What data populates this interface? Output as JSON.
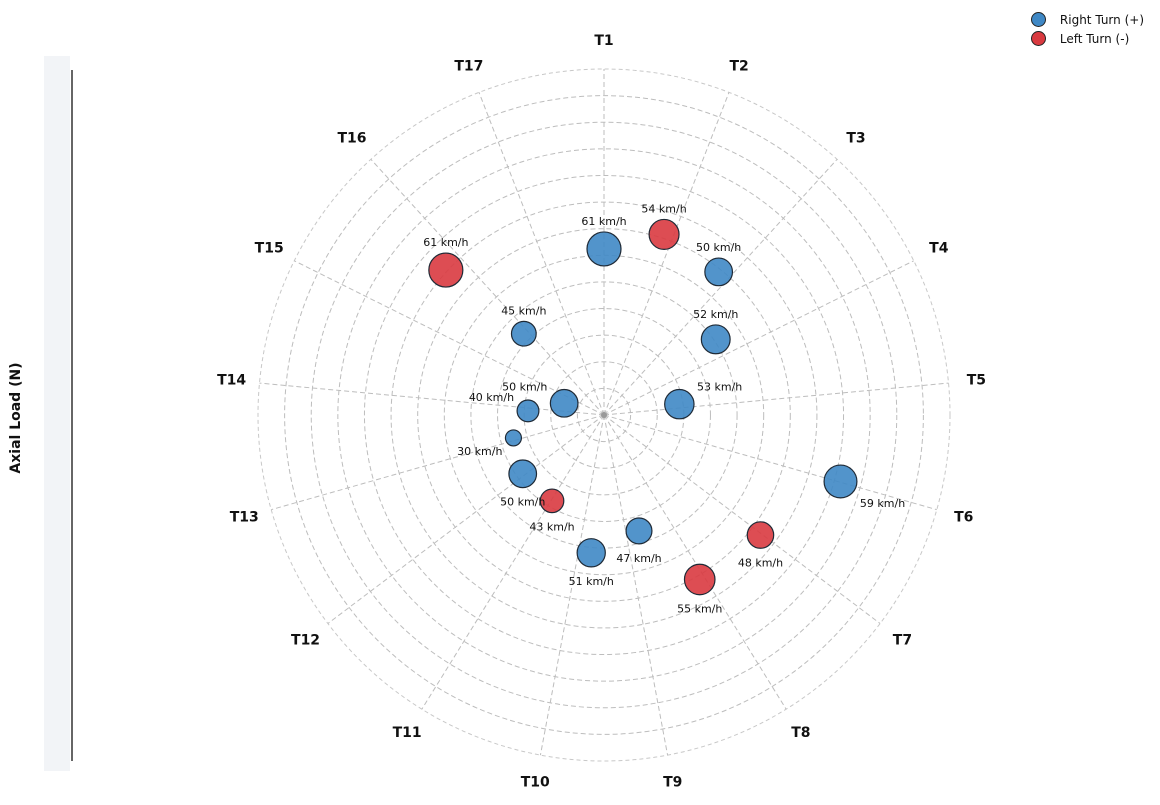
{
  "chart_data": {
    "type": "scatter",
    "subtype": "polar-bubble",
    "title": "",
    "ylabel": "Axial Load (N)",
    "grid": true,
    "legend": {
      "placement": "top-right",
      "entries": [
        {
          "label": "Right Turn (+)",
          "color": "#3f88c5"
        },
        {
          "label": "Left Turn (-)",
          "color": "#d93a40"
        }
      ]
    },
    "categories": [
      "T1",
      "T2",
      "T3",
      "T4",
      "T5",
      "T6",
      "T7",
      "T8",
      "T9",
      "T10",
      "T11",
      "T12",
      "T13",
      "T14",
      "T15",
      "T16",
      "T17"
    ],
    "r_max": 100,
    "rings": 13,
    "points": [
      {
        "id": "p1",
        "type": "right",
        "angle_deg": 0,
        "r": 48,
        "speed": 61,
        "label": "61 km/h"
      },
      {
        "id": "p2",
        "type": "left",
        "angle_deg": 18.4,
        "r": 55,
        "speed": 54,
        "label": "54 km/h"
      },
      {
        "id": "p3",
        "type": "right",
        "angle_deg": 38.7,
        "r": 53,
        "speed": 50,
        "label": "50 km/h"
      },
      {
        "id": "p4",
        "type": "right",
        "angle_deg": 55.9,
        "r": 39,
        "speed": 52,
        "label": "52 km/h"
      },
      {
        "id": "p5",
        "type": "right",
        "angle_deg": 81.8,
        "r": 22,
        "speed": 53,
        "label": "53 km/h"
      },
      {
        "id": "p6",
        "type": "right",
        "angle_deg": 105.7,
        "r": 71,
        "speed": 59,
        "label": "59 km/h"
      },
      {
        "id": "p7",
        "type": "left",
        "angle_deg": 127.5,
        "r": 57,
        "speed": 48,
        "label": "48 km/h"
      },
      {
        "id": "p8",
        "type": "left",
        "angle_deg": 149.8,
        "r": 55,
        "speed": 55,
        "label": "55 km/h"
      },
      {
        "id": "p9",
        "type": "right",
        "angle_deg": 163.2,
        "r": 35,
        "speed": 47,
        "label": "47 km/h"
      },
      {
        "id": "p10",
        "type": "right",
        "angle_deg": 185.3,
        "r": 40,
        "speed": 51,
        "label": "51 km/h"
      },
      {
        "id": "p11",
        "type": "left",
        "angle_deg": 211.2,
        "r": 29,
        "speed": 43,
        "label": "43 km/h"
      },
      {
        "id": "p12",
        "type": "right",
        "angle_deg": 234.1,
        "r": 29,
        "speed": 50,
        "label": "50 km/h"
      },
      {
        "id": "p13",
        "type": "right",
        "angle_deg": 255.8,
        "r": 27,
        "speed": 30,
        "label": "30 km/h"
      },
      {
        "id": "p14",
        "type": "right",
        "angle_deg": 273.1,
        "r": 22,
        "speed": 40,
        "label": "40 km/h"
      },
      {
        "id": "p15",
        "type": "right",
        "angle_deg": 286.4,
        "r": 12,
        "speed": 50,
        "label": "50 km/h"
      },
      {
        "id": "p16",
        "type": "right",
        "angle_deg": 315.4,
        "r": 33,
        "speed": 45,
        "label": "45 km/h"
      },
      {
        "id": "p17",
        "type": "left",
        "angle_deg": 312.5,
        "r": 62,
        "speed": 61,
        "label": "61 km/h"
      }
    ]
  }
}
